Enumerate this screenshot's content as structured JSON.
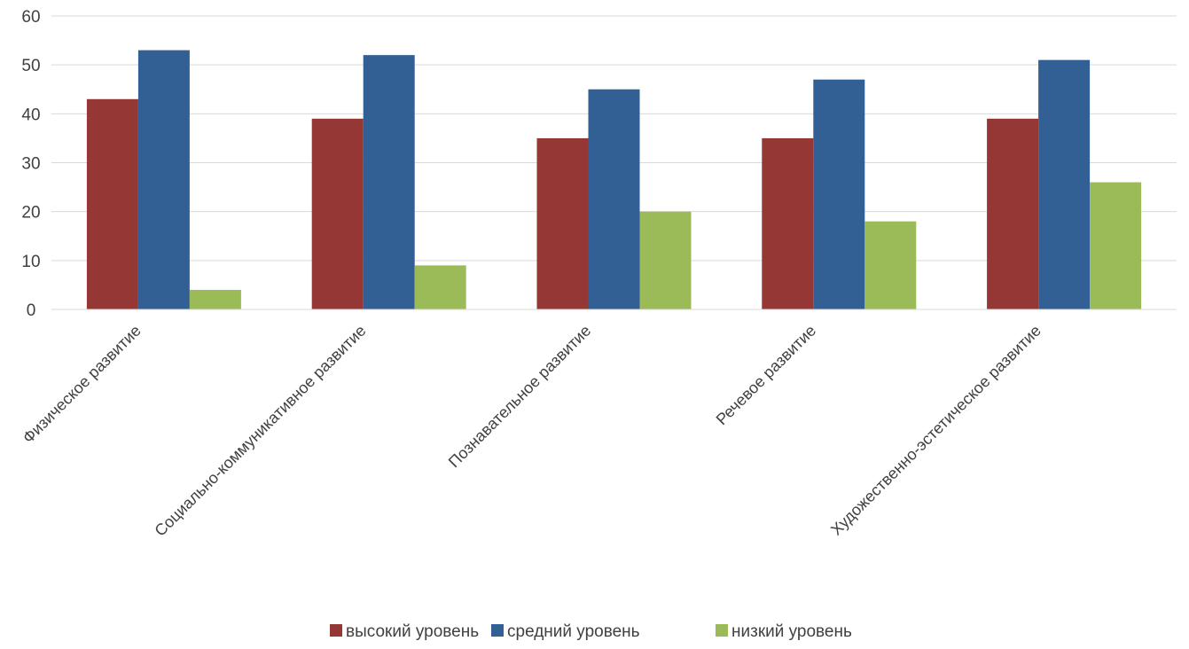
{
  "chart_data": {
    "type": "bar",
    "categories": [
      "Физическое развитие",
      "Социально-коммуникативное развитие",
      "Познавательное развитие",
      "Речевое развитие",
      "Художественно-эстетическое развитие"
    ],
    "series": [
      {
        "name": "высокий уровень",
        "color": "#953735",
        "values": [
          43,
          39,
          35,
          35,
          39
        ]
      },
      {
        "name": "средний уровень",
        "color": "#336094",
        "values": [
          53,
          52,
          45,
          47,
          51
        ]
      },
      {
        "name": "низкий уровень",
        "color": "#9bbb59",
        "values": [
          4,
          9,
          20,
          18,
          26
        ]
      }
    ],
    "ylim": [
      0,
      60
    ],
    "yticks": [
      0,
      10,
      20,
      30,
      40,
      50,
      60
    ],
    "grid": true,
    "legend_position": "bottom"
  }
}
